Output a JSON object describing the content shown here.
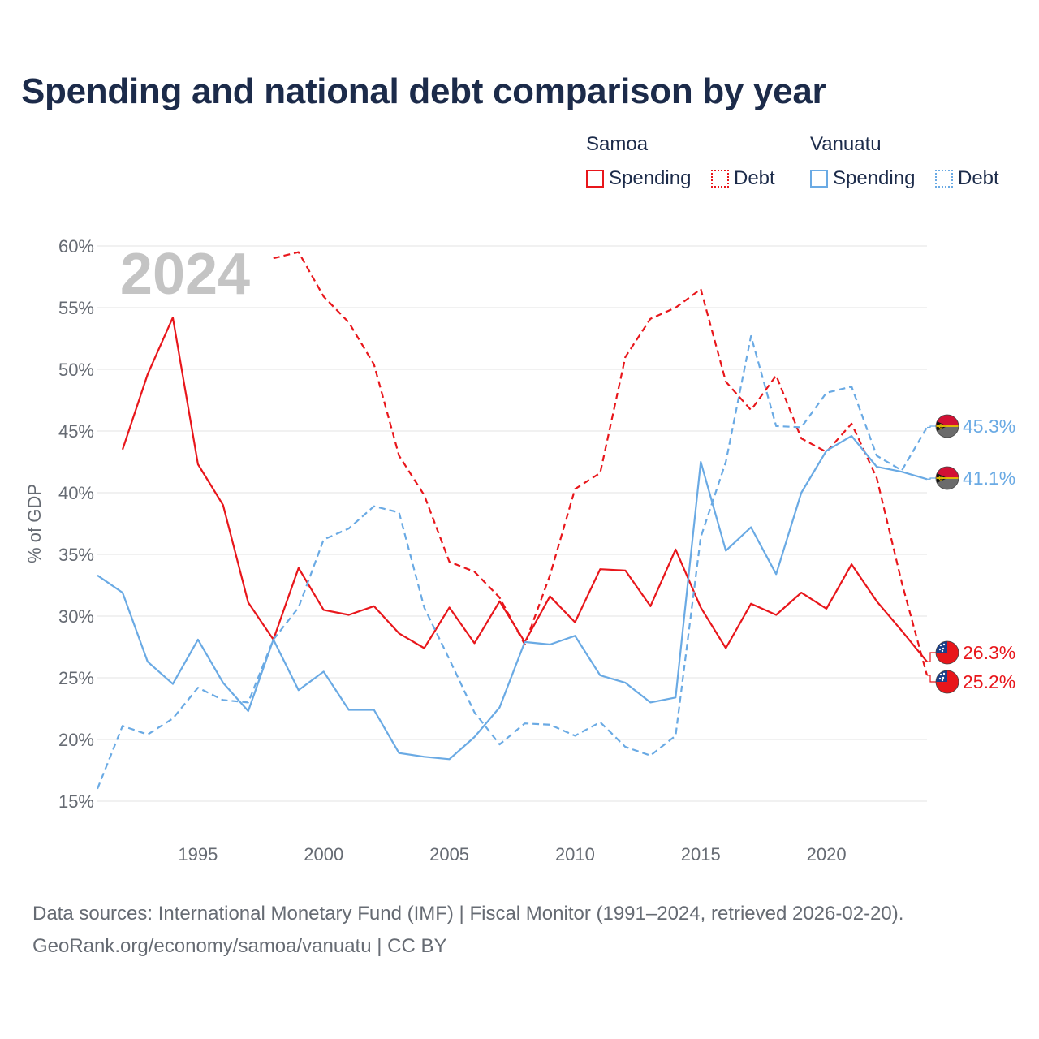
{
  "title": "Spending and national debt comparison by year",
  "legend": {
    "groups": [
      {
        "name": "Samoa",
        "spending_label": "Spending",
        "debt_label": "Debt",
        "color": "#e8161b"
      },
      {
        "name": "Vanuatu",
        "spending_label": "Spending",
        "debt_label": "Debt",
        "color": "#6aaae4"
      }
    ]
  },
  "year_watermark": "2024",
  "source": {
    "line1": "Data sources: International Monetary Fund (IMF) | Fiscal Monitor (1991–2024, retrieved 2026-02-20).",
    "line2": "GeoRank.org/economy/samoa/vanuatu | CC BY"
  },
  "chart_data": {
    "type": "line",
    "ylabel": "% of GDP",
    "xlabel": "",
    "xlim": [
      1991,
      2024
    ],
    "ylim": [
      15,
      60
    ],
    "x_ticks": [
      1995,
      2000,
      2005,
      2010,
      2015,
      2020
    ],
    "y_ticks": [
      15,
      20,
      25,
      30,
      35,
      40,
      45,
      50,
      55,
      60
    ],
    "y_tick_labels": [
      "15%",
      "20%",
      "25%",
      "30%",
      "35%",
      "40%",
      "45%",
      "50%",
      "55%",
      "60%"
    ],
    "series": [
      {
        "name": "Samoa Spending",
        "country": "Samoa",
        "metric": "Spending",
        "dash": "solid",
        "color": "#e8161b",
        "points": [
          [
            1992,
            43.5
          ],
          [
            1993,
            49.6
          ],
          [
            1994,
            54.2
          ],
          [
            1995,
            42.3
          ],
          [
            1996,
            39.0
          ],
          [
            1997,
            31.1
          ],
          [
            1998,
            28.1
          ],
          [
            1999,
            33.9
          ],
          [
            2000,
            30.5
          ],
          [
            2001,
            30.1
          ],
          [
            2002,
            30.8
          ],
          [
            2003,
            28.6
          ],
          [
            2004,
            27.4
          ],
          [
            2005,
            30.7
          ],
          [
            2006,
            27.8
          ],
          [
            2007,
            31.2
          ],
          [
            2008,
            27.9
          ],
          [
            2009,
            31.6
          ],
          [
            2010,
            29.5
          ],
          [
            2011,
            33.8
          ],
          [
            2012,
            33.7
          ],
          [
            2013,
            30.8
          ],
          [
            2014,
            35.4
          ],
          [
            2015,
            30.7
          ],
          [
            2016,
            27.4
          ],
          [
            2017,
            31.0
          ],
          [
            2018,
            30.1
          ],
          [
            2019,
            31.9
          ],
          [
            2020,
            30.6
          ],
          [
            2021,
            34.2
          ],
          [
            2022,
            31.2
          ],
          [
            2023,
            28.8
          ],
          [
            2024,
            26.3
          ]
        ],
        "end_label": "26.3%"
      },
      {
        "name": "Samoa Debt",
        "country": "Samoa",
        "metric": "Debt",
        "dash": "dashed",
        "color": "#e8161b",
        "points": [
          [
            1998,
            59.0
          ],
          [
            1999,
            59.5
          ],
          [
            2000,
            55.9
          ],
          [
            2001,
            53.8
          ],
          [
            2002,
            50.4
          ],
          [
            2003,
            43.0
          ],
          [
            2004,
            39.8
          ],
          [
            2005,
            34.4
          ],
          [
            2006,
            33.6
          ],
          [
            2007,
            31.5
          ],
          [
            2008,
            27.7
          ],
          [
            2009,
            33.3
          ],
          [
            2010,
            40.3
          ],
          [
            2011,
            41.6
          ],
          [
            2012,
            51.0
          ],
          [
            2013,
            54.1
          ],
          [
            2014,
            55.0
          ],
          [
            2015,
            56.5
          ],
          [
            2016,
            49.0
          ],
          [
            2017,
            46.7
          ],
          [
            2018,
            49.5
          ],
          [
            2019,
            44.4
          ],
          [
            2020,
            43.3
          ],
          [
            2021,
            45.6
          ],
          [
            2022,
            41.2
          ],
          [
            2023,
            32.7
          ],
          [
            2024,
            25.2
          ]
        ],
        "end_label": "25.2%"
      },
      {
        "name": "Vanuatu Spending",
        "country": "Vanuatu",
        "metric": "Spending",
        "dash": "solid",
        "color": "#6aaae4",
        "points": [
          [
            1991,
            33.3
          ],
          [
            1992,
            31.9
          ],
          [
            1993,
            26.3
          ],
          [
            1994,
            24.5
          ],
          [
            1995,
            28.1
          ],
          [
            1996,
            24.6
          ],
          [
            1997,
            22.3
          ],
          [
            1998,
            28.1
          ],
          [
            1999,
            24.0
          ],
          [
            2000,
            25.5
          ],
          [
            2001,
            22.4
          ],
          [
            2002,
            22.4
          ],
          [
            2003,
            18.9
          ],
          [
            2004,
            18.6
          ],
          [
            2005,
            18.4
          ],
          [
            2006,
            20.2
          ],
          [
            2007,
            22.6
          ],
          [
            2008,
            27.9
          ],
          [
            2009,
            27.7
          ],
          [
            2010,
            28.4
          ],
          [
            2011,
            25.2
          ],
          [
            2012,
            24.6
          ],
          [
            2013,
            23.0
          ],
          [
            2014,
            23.4
          ],
          [
            2015,
            42.5
          ],
          [
            2016,
            35.3
          ],
          [
            2017,
            37.2
          ],
          [
            2018,
            33.4
          ],
          [
            2019,
            40.0
          ],
          [
            2020,
            43.4
          ],
          [
            2021,
            44.6
          ],
          [
            2022,
            42.1
          ],
          [
            2023,
            41.7
          ],
          [
            2024,
            41.1
          ]
        ],
        "end_label": "41.1%"
      },
      {
        "name": "Vanuatu Debt",
        "country": "Vanuatu",
        "metric": "Debt",
        "dash": "dashed",
        "color": "#6aaae4",
        "points": [
          [
            1991,
            16.0
          ],
          [
            1992,
            21.1
          ],
          [
            1993,
            20.4
          ],
          [
            1994,
            21.7
          ],
          [
            1995,
            24.2
          ],
          [
            1996,
            23.2
          ],
          [
            1997,
            23.0
          ],
          [
            1998,
            28.1
          ],
          [
            1999,
            30.7
          ],
          [
            2000,
            36.2
          ],
          [
            2001,
            37.1
          ],
          [
            2002,
            38.9
          ],
          [
            2003,
            38.4
          ],
          [
            2004,
            30.7
          ],
          [
            2005,
            26.5
          ],
          [
            2006,
            22.2
          ],
          [
            2007,
            19.6
          ],
          [
            2008,
            21.3
          ],
          [
            2009,
            21.2
          ],
          [
            2010,
            20.3
          ],
          [
            2011,
            21.4
          ],
          [
            2012,
            19.4
          ],
          [
            2013,
            18.7
          ],
          [
            2014,
            20.3
          ],
          [
            2015,
            36.4
          ],
          [
            2016,
            42.5
          ],
          [
            2017,
            52.7
          ],
          [
            2018,
            45.4
          ],
          [
            2019,
            45.3
          ],
          [
            2020,
            48.1
          ],
          [
            2021,
            48.6
          ],
          [
            2022,
            43.0
          ],
          [
            2023,
            41.8
          ],
          [
            2024,
            45.3
          ]
        ],
        "end_label": "45.3%"
      }
    ]
  }
}
